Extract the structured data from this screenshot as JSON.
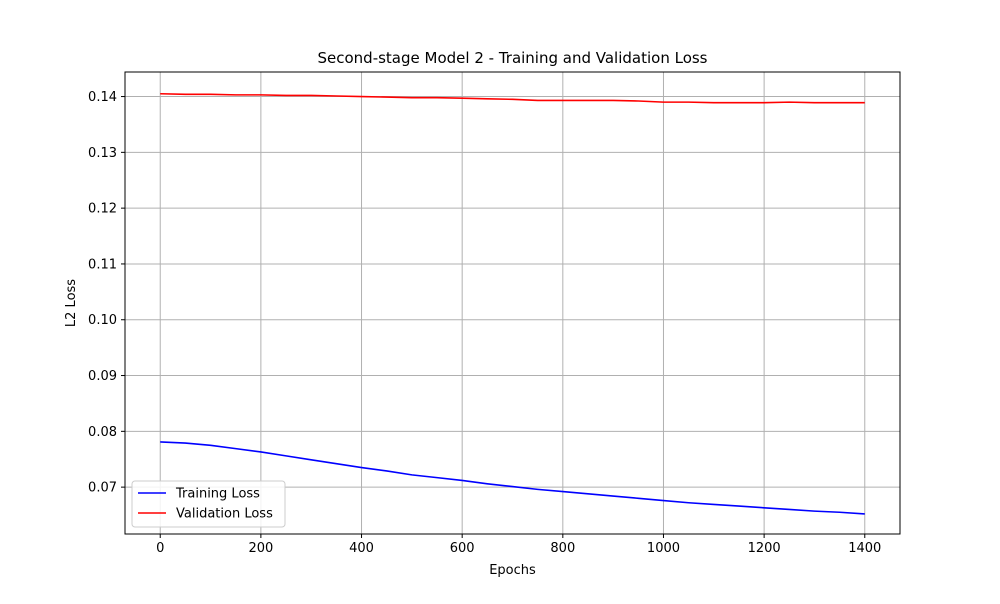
{
  "chart_data": {
    "type": "line",
    "title": "Second-stage Model 2 - Training and Validation Loss",
    "xlabel": "Epochs",
    "ylabel": "L2 Loss",
    "xlim": [
      -70,
      1470
    ],
    "ylim": [
      0.0616,
      0.1444
    ],
    "x_ticks": [
      0,
      200,
      400,
      600,
      800,
      1000,
      1200,
      1400
    ],
    "y_ticks": [
      0.07,
      0.08,
      0.09,
      0.1,
      0.11,
      0.12,
      0.13,
      0.14
    ],
    "x_tick_labels": [
      "0",
      "200",
      "400",
      "600",
      "800",
      "1000",
      "1200",
      "1400"
    ],
    "y_tick_labels": [
      "0.07",
      "0.08",
      "0.09",
      "0.10",
      "0.11",
      "0.12",
      "0.13",
      "0.14"
    ],
    "grid": true,
    "legend_position": "lower-left",
    "series": [
      {
        "name": "Training Loss",
        "color": "#0000ff",
        "x": [
          0,
          50,
          100,
          150,
          200,
          250,
          300,
          350,
          400,
          450,
          500,
          550,
          600,
          650,
          700,
          750,
          800,
          850,
          900,
          950,
          1000,
          1050,
          1100,
          1150,
          1200,
          1250,
          1300,
          1350,
          1400
        ],
        "y": [
          0.0781,
          0.0779,
          0.0775,
          0.0769,
          0.0763,
          0.0756,
          0.0749,
          0.0742,
          0.0735,
          0.0729,
          0.0722,
          0.0717,
          0.0712,
          0.0706,
          0.0701,
          0.0696,
          0.0692,
          0.0688,
          0.0684,
          0.068,
          0.0676,
          0.0672,
          0.0669,
          0.0666,
          0.0663,
          0.066,
          0.0657,
          0.0655,
          0.0652
        ]
      },
      {
        "name": "Validation Loss",
        "color": "#ff0000",
        "x": [
          0,
          50,
          100,
          150,
          200,
          250,
          300,
          350,
          400,
          450,
          500,
          550,
          600,
          650,
          700,
          750,
          800,
          850,
          900,
          950,
          1000,
          1050,
          1100,
          1150,
          1200,
          1250,
          1300,
          1350,
          1400
        ],
        "y": [
          0.1405,
          0.1404,
          0.1404,
          0.1403,
          0.1403,
          0.1402,
          0.1402,
          0.1401,
          0.14,
          0.1399,
          0.1398,
          0.1398,
          0.1397,
          0.1396,
          0.1395,
          0.1393,
          0.1393,
          0.1393,
          0.1393,
          0.1392,
          0.139,
          0.139,
          0.1389,
          0.1389,
          0.1389,
          0.139,
          0.1389,
          0.1389,
          0.1389
        ]
      }
    ]
  }
}
